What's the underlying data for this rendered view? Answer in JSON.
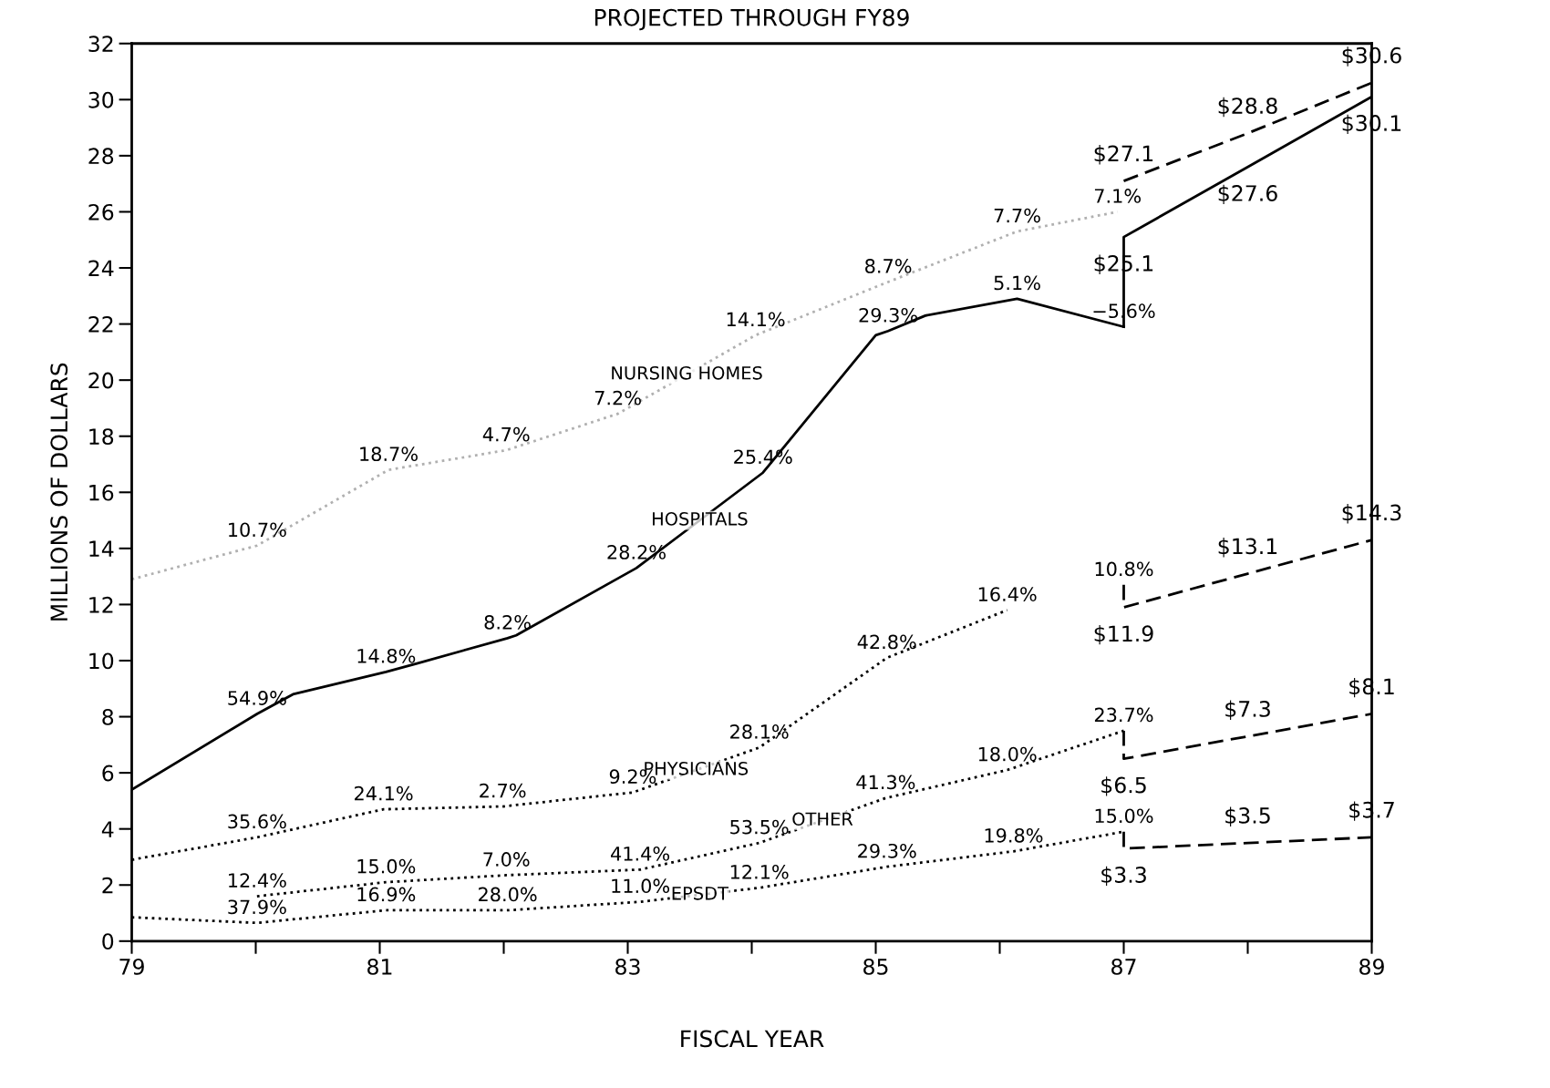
{
  "chart_data": {
    "type": "line",
    "title": "PROJECTED THROUGH FY89",
    "xlabel": "FISCAL YEAR",
    "ylabel": "MILLIONS OF DOLLARS",
    "xlim": [
      79,
      89
    ],
    "xticks": [
      79,
      {
        "value": 80,
        "label": null
      },
      81,
      {
        "value": 82,
        "label": null
      },
      83,
      {
        "value": 84,
        "label": null
      },
      85,
      {
        "value": 86,
        "label": null
      },
      87,
      {
        "value": 88,
        "label": null
      },
      89
    ],
    "ylim": [
      0,
      32
    ],
    "yticks": [
      0,
      2,
      4,
      6,
      8,
      10,
      12,
      14,
      16,
      18,
      20,
      22,
      24,
      26,
      28,
      30,
      32
    ],
    "grid": false,
    "legend": false,
    "marker": "none",
    "series": [
      {
        "name": "NURSING HOMES",
        "color": "#b0b0b0",
        "line_style": "dotted",
        "x": [
          79,
          80.01,
          81.07,
          82.02,
          82.92,
          84.03,
          85.1,
          86.14,
          86.95
        ],
        "values": [
          12.9,
          14.1,
          16.8,
          17.5,
          18.8,
          21.6,
          23.5,
          25.3,
          26.0
        ]
      },
      {
        "color": "#000000",
        "line_style": "dashed",
        "x": [
          87,
          88,
          89
        ],
        "values": [
          27.1,
          28.8,
          30.6
        ],
        "value_labels": [
          "$27.1",
          "$28.8",
          "$30.6"
        ]
      },
      {
        "name": "HOSPITALS",
        "color": "#000000",
        "line_style": "solid",
        "x": [
          79,
          80.01,
          80.3,
          81.05,
          81.3,
          82.03,
          82.1,
          83.07,
          84.09,
          85.0,
          85.1,
          85.4,
          86.14,
          87.0
        ],
        "values": [
          5.4,
          8.1,
          8.8,
          9.6,
          9.9,
          10.8,
          10.9,
          13.3,
          16.7,
          21.6,
          21.75,
          22.3,
          22.9,
          21.9
        ]
      },
      {
        "color": "#000000",
        "line_style": "solid",
        "x": [
          87,
          87,
          88,
          89
        ],
        "values": [
          21.9,
          25.1,
          27.6,
          30.1
        ],
        "value_labels": [
          null,
          "$25.1",
          "$27.6",
          "$30.1"
        ]
      },
      {
        "name": "PHYSICIANS",
        "color": "#000000",
        "line_style": "dotted",
        "x": [
          79,
          80.01,
          81.03,
          81.99,
          83.04,
          84.06,
          85.09,
          86.06
        ],
        "values": [
          2.9,
          3.7,
          4.7,
          4.8,
          5.3,
          6.9,
          10.1,
          11.8
        ]
      },
      {
        "color": "#000000",
        "line_style": "dashed",
        "x": [
          87,
          87,
          88,
          89
        ],
        "values": [
          12.7,
          11.9,
          13.1,
          14.3
        ],
        "value_labels": [
          null,
          "$11.9",
          "$13.1",
          "$14.3"
        ]
      },
      {
        "name": "OTHER",
        "color": "#000000",
        "line_style": "dotted",
        "x": [
          80.01,
          81.05,
          82.02,
          83.1,
          84.06,
          85.08,
          86.06,
          87.0
        ],
        "values": [
          1.6,
          2.1,
          2.35,
          2.55,
          3.5,
          5.1,
          6.1,
          7.5
        ]
      },
      {
        "color": "#000000",
        "line_style": "dashed",
        "x": [
          87,
          87,
          88,
          89
        ],
        "values": [
          7.5,
          6.5,
          7.3,
          8.1
        ],
        "value_labels": [
          null,
          "$6.5",
          "$7.3",
          "$8.1"
        ]
      },
      {
        "name": "EPSDT",
        "color": "#000000",
        "line_style": "dotted",
        "x": [
          79,
          80.01,
          81.05,
          82.03,
          83.1,
          84.06,
          85.09,
          86.11,
          87.0
        ],
        "values": [
          0.85,
          0.65,
          1.1,
          1.1,
          1.4,
          1.9,
          2.65,
          3.2,
          3.9
        ]
      },
      {
        "color": "#000000",
        "line_style": "dashed",
        "x": [
          87,
          87,
          88,
          89
        ],
        "values": [
          3.9,
          3.3,
          3.5,
          3.7
        ],
        "value_labels": [
          null,
          "$3.3",
          "$3.5",
          "$3.7"
        ]
      }
    ],
    "annotations": [
      {
        "text": "10.7%",
        "x": 80.01,
        "y": 14.1
      },
      {
        "text": "18.7%",
        "x": 81.07,
        "y": 16.8
      },
      {
        "text": "4.7%",
        "x": 82.02,
        "y": 17.5
      },
      {
        "text": "7.2%",
        "x": 82.92,
        "y": 18.8
      },
      {
        "text": "14.1%",
        "x": 84.03,
        "y": 21.6
      },
      {
        "text": "8.7%",
        "x": 85.1,
        "y": 23.5
      },
      {
        "text": "7.7%",
        "x": 86.14,
        "y": 25.3
      },
      {
        "text": "7.1%",
        "x": 86.95,
        "y": 26.0
      },
      {
        "text": "54.9%",
        "x": 80.01,
        "y": 8.1
      },
      {
        "text": "14.8%",
        "x": 81.05,
        "y": 9.6
      },
      {
        "text": "8.2%",
        "x": 82.03,
        "y": 10.8
      },
      {
        "text": "28.2%",
        "x": 83.07,
        "y": 13.3
      },
      {
        "text": "25.4%",
        "x": 84.09,
        "y": 16.7
      },
      {
        "text": "29.3%",
        "x": 85.1,
        "y": 21.75
      },
      {
        "text": "5.1%",
        "x": 86.14,
        "y": 22.9
      },
      {
        "text": "−5.6%",
        "x": 87.0,
        "y": 21.9
      },
      {
        "text": "35.6%",
        "x": 80.01,
        "y": 3.7
      },
      {
        "text": "24.1%",
        "x": 81.03,
        "y": 4.7
      },
      {
        "text": "2.7%",
        "x": 81.99,
        "y": 4.8
      },
      {
        "text": "9.2%",
        "x": 83.04,
        "y": 5.3
      },
      {
        "text": "28.1%",
        "x": 84.06,
        "y": 6.9
      },
      {
        "text": "42.8%",
        "x": 85.09,
        "y": 10.1
      },
      {
        "text": "16.4%",
        "x": 86.06,
        "y": 11.8
      },
      {
        "text": "10.8%",
        "x": 87.0,
        "y": 12.7
      },
      {
        "text": "12.4%",
        "x": 80.01,
        "y": 1.6
      },
      {
        "text": "15.0%",
        "x": 81.05,
        "y": 2.1
      },
      {
        "text": "7.0%",
        "x": 82.02,
        "y": 2.35
      },
      {
        "text": "41.4%",
        "x": 83.1,
        "y": 2.55
      },
      {
        "text": "53.5%",
        "x": 84.06,
        "y": 3.5
      },
      {
        "text": "41.3%",
        "x": 85.08,
        "y": 5.1
      },
      {
        "text": "18.0%",
        "x": 86.06,
        "y": 6.1
      },
      {
        "text": "23.7%",
        "x": 87.0,
        "y": 7.5
      },
      {
        "text": "37.9%",
        "x": 80.01,
        "y": 0.65
      },
      {
        "text": "16.9%",
        "x": 81.05,
        "y": 1.1
      },
      {
        "text": "28.0%",
        "x": 82.03,
        "y": 1.1
      },
      {
        "text": "11.0%",
        "x": 83.1,
        "y": 1.4
      },
      {
        "text": "12.1%",
        "x": 84.06,
        "y": 1.9
      },
      {
        "text": "29.3%",
        "x": 85.09,
        "y": 2.65
      },
      {
        "text": "19.8%",
        "x": 86.11,
        "y": 3.2
      },
      {
        "text": "15.0%",
        "x": 87.0,
        "y": 3.9
      }
    ]
  }
}
